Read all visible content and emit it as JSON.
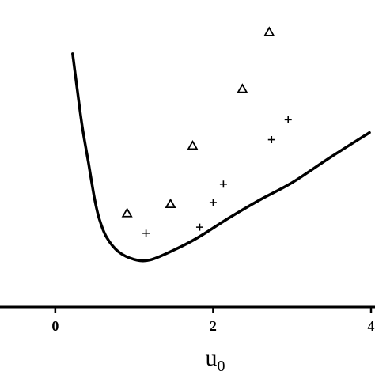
{
  "chart_data": {
    "type": "scatter",
    "title": "",
    "xlabel": "u",
    "xlabel_subscript": "0",
    "ylabel": "",
    "xlim": [
      -0.7,
      4.0
    ],
    "ylim": [
      0,
      10
    ],
    "x_ticks": [
      {
        "value": 0,
        "label": "0"
      },
      {
        "value": 2,
        "label": "2"
      },
      {
        "value": 4,
        "label": "4"
      }
    ],
    "grid": false,
    "legend": "none",
    "series": [
      {
        "kind": "line",
        "style": "solid",
        "color": "#000000",
        "points": [
          {
            "x": 0.22,
            "y": 8.25
          },
          {
            "x": 0.28,
            "y": 7.05
          },
          {
            "x": 0.34,
            "y": 5.9
          },
          {
            "x": 0.42,
            "y": 4.7
          },
          {
            "x": 0.5,
            "y": 3.5
          },
          {
            "x": 0.56,
            "y": 2.85
          },
          {
            "x": 0.65,
            "y": 2.27
          },
          {
            "x": 0.8,
            "y": 1.8
          },
          {
            "x": 1.0,
            "y": 1.55
          },
          {
            "x": 1.2,
            "y": 1.53
          },
          {
            "x": 1.5,
            "y": 1.85
          },
          {
            "x": 1.8,
            "y": 2.25
          },
          {
            "x": 2.2,
            "y": 2.9
          },
          {
            "x": 2.6,
            "y": 3.5
          },
          {
            "x": 3.0,
            "y": 4.05
          },
          {
            "x": 3.5,
            "y": 4.9
          },
          {
            "x": 3.98,
            "y": 5.68
          }
        ]
      },
      {
        "kind": "scatter",
        "marker": "triangle",
        "color": "#000000",
        "points": [
          {
            "x": 0.91,
            "y": 3.05
          },
          {
            "x": 1.46,
            "y": 3.35
          },
          {
            "x": 1.74,
            "y": 5.25
          },
          {
            "x": 2.37,
            "y": 7.1
          },
          {
            "x": 2.71,
            "y": 8.95
          }
        ]
      },
      {
        "kind": "scatter",
        "marker": "plus",
        "color": "#000000",
        "points": [
          {
            "x": 1.15,
            "y": 2.4
          },
          {
            "x": 1.83,
            "y": 2.6
          },
          {
            "x": 2.0,
            "y": 3.4
          },
          {
            "x": 2.13,
            "y": 4.0
          },
          {
            "x": 2.74,
            "y": 5.45
          },
          {
            "x": 2.95,
            "y": 6.1
          }
        ]
      }
    ]
  }
}
